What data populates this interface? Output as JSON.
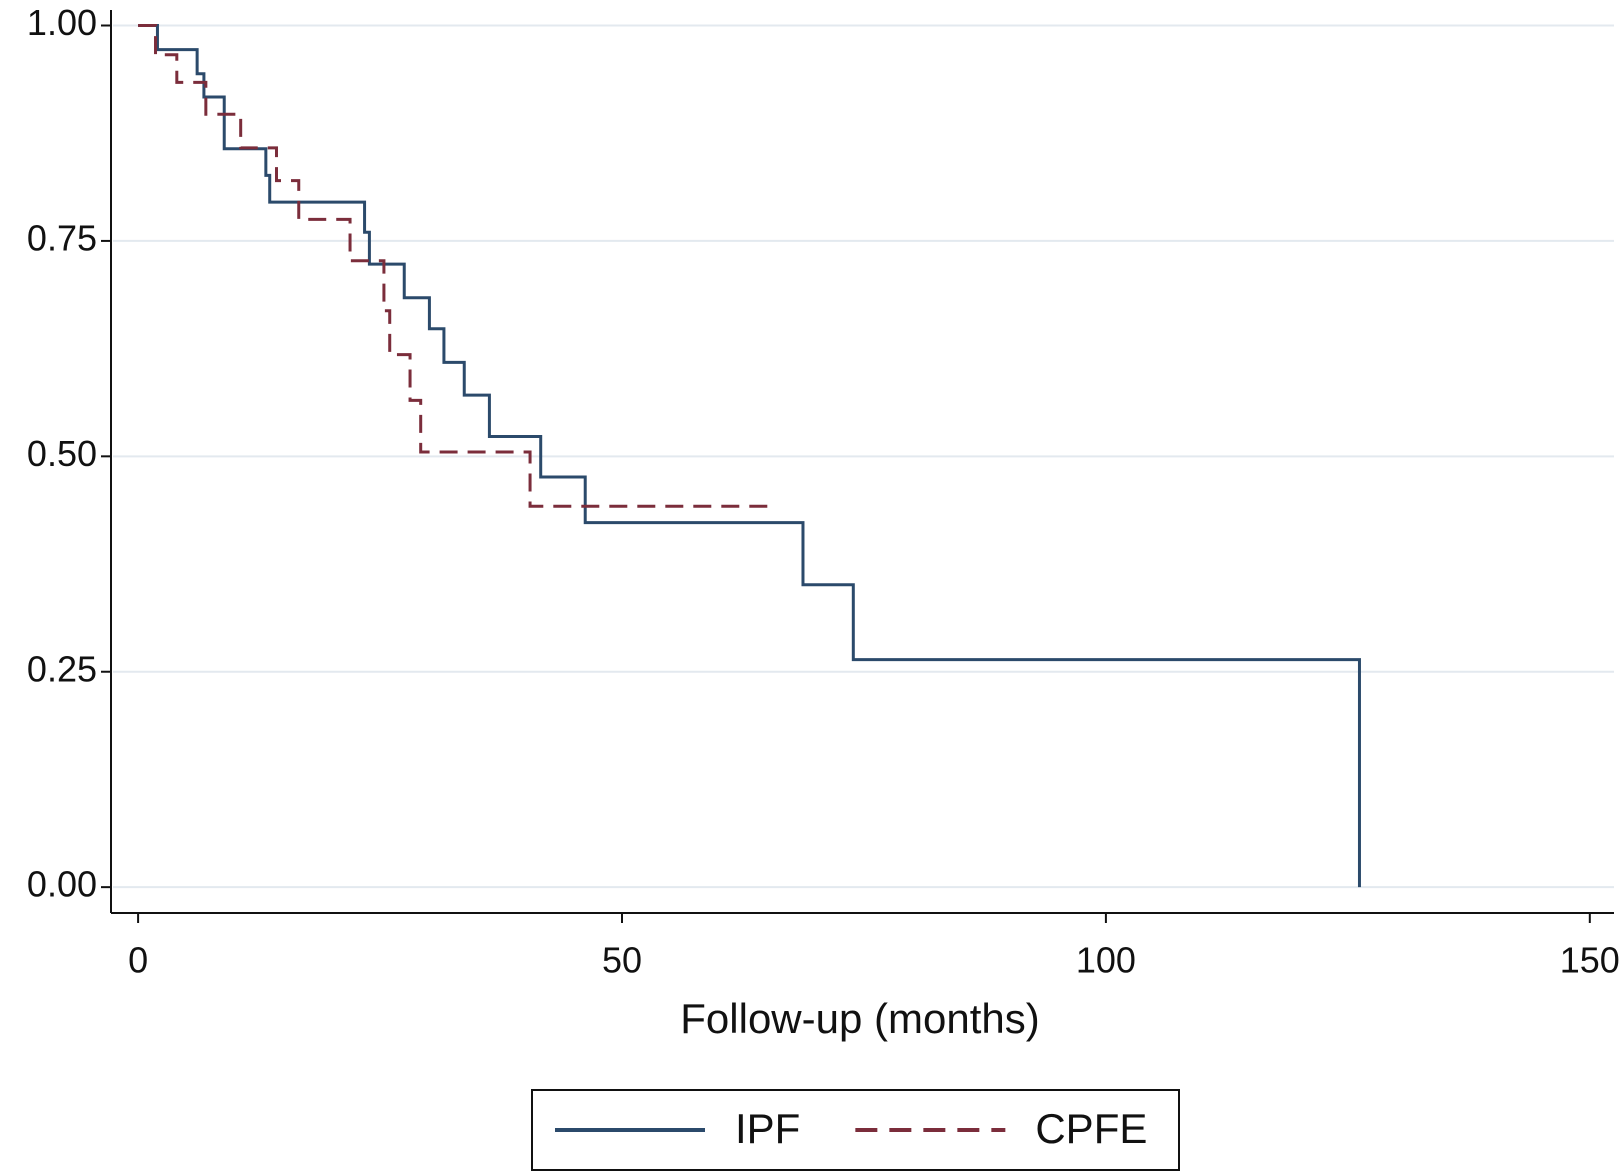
{
  "chart_data": {
    "type": "line",
    "step": "post",
    "x_label": "Follow-up (months)",
    "xlim": [
      -2.8,
      152.5
    ],
    "ylim": [
      -0.03,
      1.018
    ],
    "xticks": [
      0,
      50,
      100,
      150
    ],
    "yticks": [
      {
        "value": 0,
        "label": "0.00"
      },
      {
        "value": 0.25,
        "label": "0.25"
      },
      {
        "value": 0.5,
        "label": "0.50"
      },
      {
        "value": 0.75,
        "label": "0.75"
      },
      {
        "value": 1,
        "label": "1.00"
      }
    ],
    "grid": true,
    "legend": "bottom",
    "series": [
      {
        "name": "IPF",
        "color": "#2b4a6b",
        "dash": false,
        "x": [
          0,
          2.0,
          6.1,
          6.8,
          8.9,
          13.2,
          13.6,
          23.4,
          23.9,
          27.5,
          30.1,
          31.6,
          33.7,
          36.3,
          41.6,
          46.2,
          68.7,
          73.9,
          126.2
        ],
        "values": [
          1.0,
          0.972,
          0.944,
          0.917,
          0.857,
          0.826,
          0.795,
          0.76,
          0.723,
          0.684,
          0.648,
          0.609,
          0.571,
          0.523,
          0.476,
          0.423,
          0.351,
          0.264,
          0
        ]
      },
      {
        "name": "CPFE",
        "color": "#7b2d3b",
        "dash": true,
        "x": [
          0,
          1.8,
          4.0,
          7.0,
          10.6,
          14.3,
          16.6,
          21.9,
          25.4,
          26.0,
          28.1,
          29.2,
          40.5,
          66.0
        ],
        "values": [
          1.0,
          0.966,
          0.934,
          0.897,
          0.858,
          0.82,
          0.775,
          0.727,
          0.669,
          0.618,
          0.565,
          0.505,
          0.442,
          0.442
        ]
      }
    ]
  }
}
